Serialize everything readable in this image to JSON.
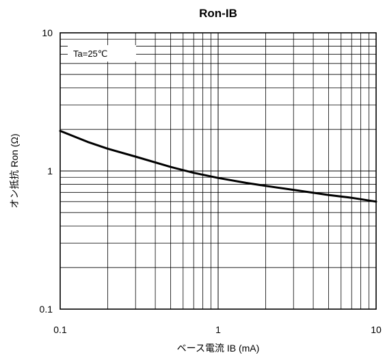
{
  "chart_data": {
    "type": "line",
    "title": "Ron-IB",
    "xlabel": "ベース電流 IB (mA)",
    "ylabel": "オン抵抗 Ron (Ω)",
    "x_scale": "log",
    "y_scale": "log",
    "xlim": [
      0.1,
      10
    ],
    "ylim": [
      0.1,
      10
    ],
    "x_ticks": [
      "0.1",
      "1",
      "10"
    ],
    "y_ticks": [
      "0.1",
      "1",
      "10"
    ],
    "grid": true,
    "annotation": "Ta=25℃",
    "series": [
      {
        "x": [
          0.1,
          0.15,
          0.2,
          0.3,
          0.5,
          0.7,
          1,
          1.5,
          2,
          3,
          5,
          7,
          10
        ],
        "y": [
          1.95,
          1.62,
          1.45,
          1.27,
          1.07,
          0.97,
          0.89,
          0.82,
          0.78,
          0.73,
          0.67,
          0.64,
          0.6
        ]
      }
    ]
  }
}
